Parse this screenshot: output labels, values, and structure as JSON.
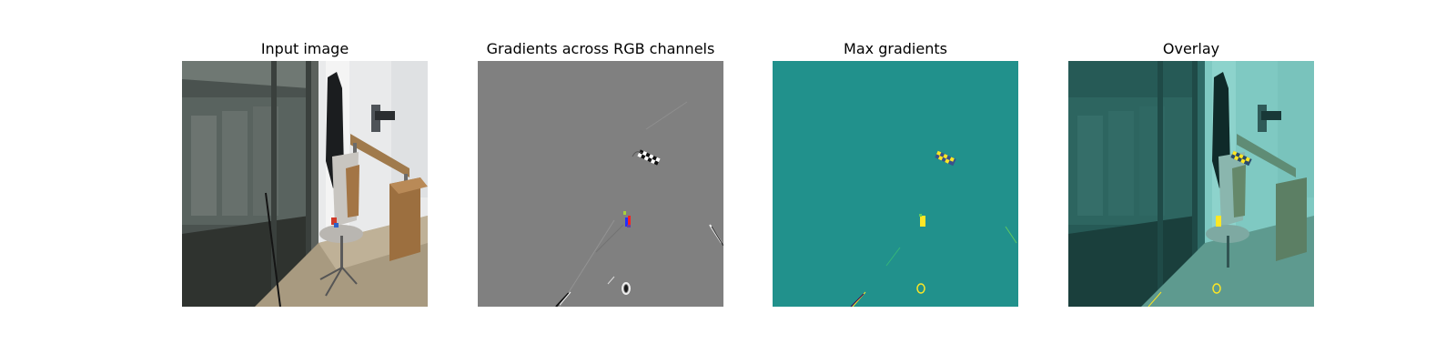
{
  "figure": {
    "panels": [
      {
        "title": "Input image",
        "content": "photo"
      },
      {
        "title": "Gradients across RGB channels",
        "content": "gradient-map"
      },
      {
        "title": "Max gradients",
        "content": "max-gradient-map"
      },
      {
        "title": "Overlay",
        "content": "overlay"
      }
    ]
  },
  "colors": {
    "gradient_background": "#808080",
    "max_gradient_background": "#21918c",
    "max_gradient_highlight": "#fde725",
    "overlay_tint": "#7fd0c8"
  }
}
